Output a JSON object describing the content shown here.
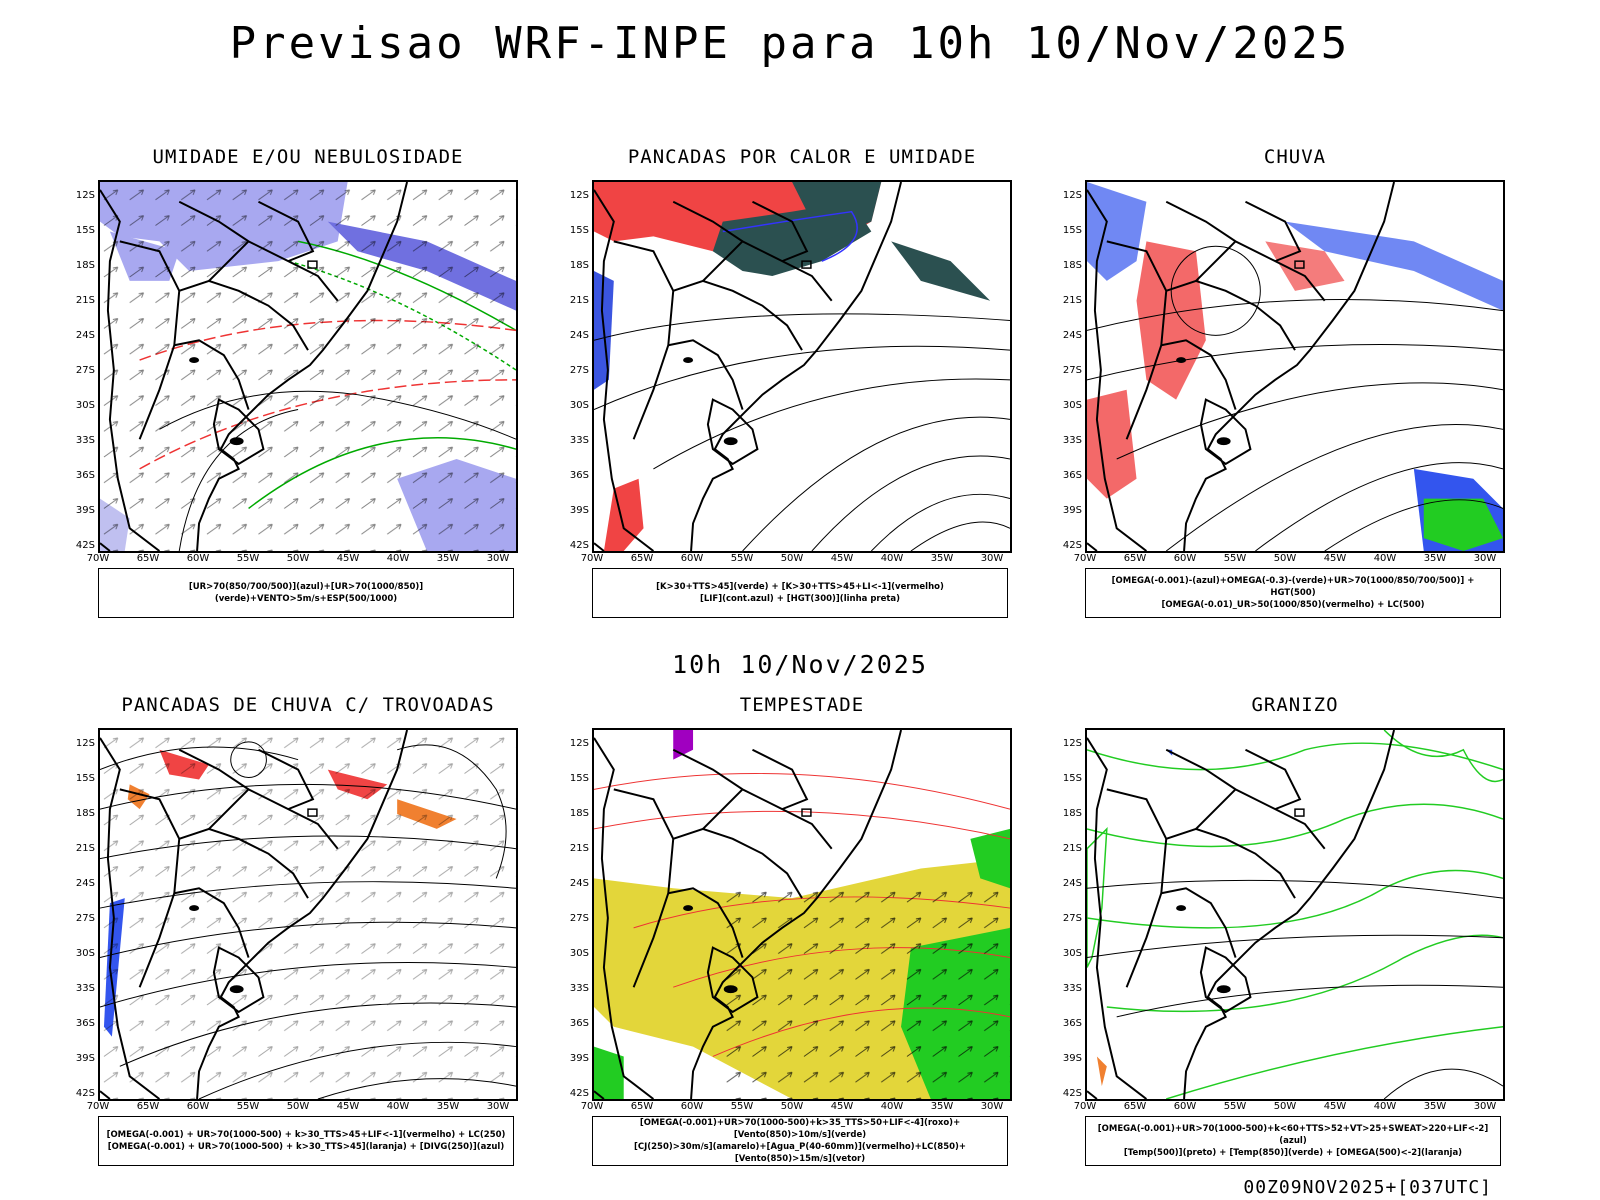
{
  "main_title": "Previsao WRF-INPE  para 10h 10/Nov/2025",
  "mid_title": "10h 10/Nov/2025",
  "footer": "00Z09NOV2025+[037UTC]",
  "lat_labels": [
    "12S",
    "15S",
    "18S",
    "21S",
    "24S",
    "27S",
    "30S",
    "33S",
    "36S",
    "39S",
    "42S"
  ],
  "lon_labels": [
    "70W",
    "65W",
    "60W",
    "55W",
    "50W",
    "45W",
    "40W",
    "35W",
    "30W"
  ],
  "panels": [
    {
      "title": "UMIDADE E/OU NEBULOSIDADE",
      "legend": [
        "[UR>70(850/700/500)](azul)+[UR>70(1000/850)](verde)+VENTO>5m/s+ESP(500/1000)"
      ]
    },
    {
      "title": "PANCADAS POR CALOR E UMIDADE",
      "legend": [
        "[K>30+TTS>45](verde) + [K>30+TTS>45+LI<-1](vermelho)",
        "[LIF](cont.azul) + [HGT(300)](linha preta)"
      ]
    },
    {
      "title": "CHUVA",
      "legend": [
        "[OMEGA(-0.001)-(azul)+OMEGA(-0.3)-(verde)+UR>70(1000/850/700/500)] + HGT(500)",
        "[OMEGA(-0.01)_UR>50(1000/850)(vermelho) + LC(500)"
      ]
    },
    {
      "title": "PANCADAS DE CHUVA C/ TROVOADAS",
      "legend": [
        "[OMEGA(-0.001) + UR>70(1000-500) + k>30_TTS>45+LIF<-1](vermelho) + LC(250)",
        "[OMEGA(-0.001) + UR>70(1000-500) + k>30_TTS>45](laranja) + [DIVG(250)](azul)"
      ]
    },
    {
      "title": "TEMPESTADE",
      "legend": [
        "[OMEGA(-0.001)+UR>70(1000-500)+k>35_TTS>50+LIF<-4](roxo)+[Vento(850)>10m/s](verde)",
        "[CJ(250)>30m/s](amarelo)+[Agua_P(40-60mm)](vermelho)+LC(850)+[Vento(850)>15m/s](vetor)"
      ]
    },
    {
      "title": "GRANIZO",
      "legend": [
        "[OMEGA(-0.001)+UR>70(1000-500)+k<60+TTS>52+VT>25+SWEAT>220+LIF<-2](azul)",
        "[Temp(500)](preto) + [Temp(850)](verde) + [OMEGA(500)<-2](laranja)"
      ]
    }
  ]
}
